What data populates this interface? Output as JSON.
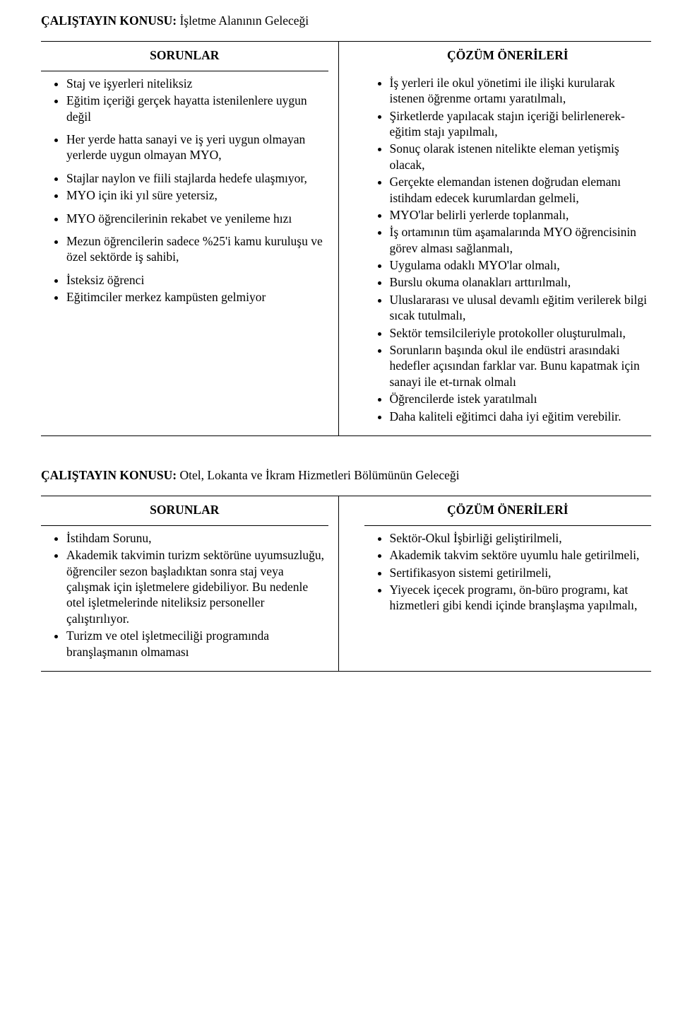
{
  "topic1": {
    "label": "ÇALIŞTAYIN KONUSU:",
    "text": " İşletme Alanının Geleceği"
  },
  "headers": {
    "sorunlar": "SORUNLAR",
    "cozum": "ÇÖZÜM ÖNERİLERİ"
  },
  "sorunlar1": {
    "g1": {
      "i0": "Staj ve işyerleri niteliksiz",
      "i1": "Eğitim içeriği gerçek hayatta istenilenlere uygun değil"
    },
    "g2": {
      "i0": "Her yerde hatta sanayi ve iş yeri uygun olmayan yerlerde uygun olmayan MYO,"
    },
    "g3": {
      "i0": "Stajlar naylon ve fiili stajlarda hedefe ulaşmıyor,",
      "i1": "MYO için iki yıl süre yetersiz,"
    },
    "g4": {
      "i0": "MYO öğrencilerinin rekabet ve yenileme hızı"
    },
    "g5": {
      "i0": "Mezun öğrencilerin sadece %25'i kamu kuruluşu ve özel sektörde iş sahibi,"
    },
    "g6": {
      "i0": "İsteksiz öğrenci",
      "i1": "Eğitimciler merkez kampüsten gelmiyor"
    }
  },
  "cozum1": {
    "i0": "İş yerleri ile okul yönetimi ile ilişki kurularak istenen öğrenme ortamı yaratılmalı,",
    "i1": "Şirketlerde yapılacak stajın içeriği belirlenerek- eğitim stajı yapılmalı,",
    "i2": "Sonuç olarak istenen nitelikte eleman yetişmiş olacak,",
    "i3": "Gerçekte elemandan istenen doğrudan elemanı istihdam edecek kurumlardan gelmeli,",
    "i4": "MYO'lar belirli yerlerde toplanmalı,",
    "i5": "İş ortamının tüm aşamalarında MYO öğrencisinin görev alması sağlanmalı,",
    "i6": "Uygulama odaklı MYO'lar olmalı,",
    "i7": "Burslu okuma olanakları arttırılmalı,",
    "i8": "Uluslararası ve ulusal devamlı eğitim verilerek bilgi sıcak tutulmalı,",
    "i9": "Sektör temsilcileriyle protokoller oluşturulmalı,",
    "i10": "Sorunların başında okul ile endüstri arasındaki hedefler açısından farklar var. Bunu kapatmak için sanayi ile et-tırnak olmalı",
    "i11": "Öğrencilerde istek yaratılmalı",
    "i12": "Daha kaliteli eğitimci daha iyi eğitim verebilir."
  },
  "topic2": {
    "label": "ÇALIŞTAYIN KONUSU:",
    "text": " Otel, Lokanta ve İkram Hizmetleri Bölümünün Geleceği"
  },
  "sorunlar2": {
    "i0": "İstihdam Sorunu,",
    "i1": "Akademik takvimin turizm sektörüne uyumsuzluğu, öğrenciler sezon başladıktan sonra staj veya çalışmak için işletmelere gidebiliyor. Bu nedenle otel işletmelerinde niteliksiz personeller çalıştırılıyor.",
    "i2": "Turizm ve otel işletmeciliği programında branşlaşmanın olmaması"
  },
  "cozum2": {
    "i0": "Sektör-Okul İşbirliği geliştirilmeli,",
    "i1": "Akademik takvim sektöre uyumlu hale getirilmeli,",
    "i2": "Sertifikasyon sistemi getirilmeli,",
    "i3": "Yiyecek içecek programı, ön-büro programı, kat hizmetleri gibi kendi içinde branşlaşma yapılmalı,"
  }
}
